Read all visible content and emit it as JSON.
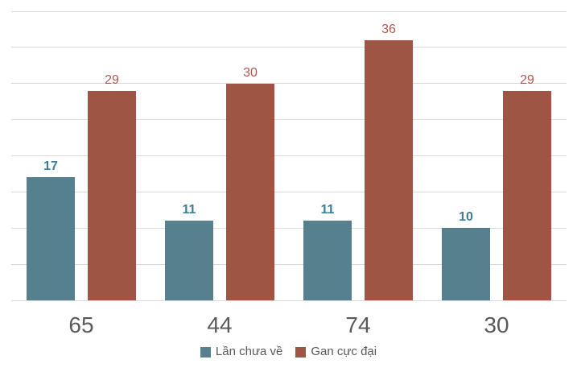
{
  "chart_data": {
    "type": "bar",
    "title": "",
    "xlabel": "",
    "ylabel": "",
    "categories": [
      "65",
      "44",
      "74",
      "30"
    ],
    "series": [
      {
        "name": "Lần chưa về",
        "values": [
          17,
          11,
          11,
          10
        ],
        "color": "#57808E",
        "label_color": "#3C7D97",
        "label_bold": true
      },
      {
        "name": "Gan cực đại",
        "values": [
          29,
          30,
          36,
          29
        ],
        "color": "#9E5544",
        "label_color": "#AE5750",
        "label_bold": false
      }
    ],
    "ylim": [
      0,
      40
    ],
    "gridline_step": 5,
    "grid": true,
    "y_axis_tick_labels_visible": false,
    "legend_position": "bottom",
    "data_labels": true
  },
  "colors": {
    "background": "#FFFFFF",
    "gridline": "#D9D9D9",
    "axis_line": "#D9D9D9",
    "category_label": "#595959",
    "legend_text": "#595959"
  }
}
